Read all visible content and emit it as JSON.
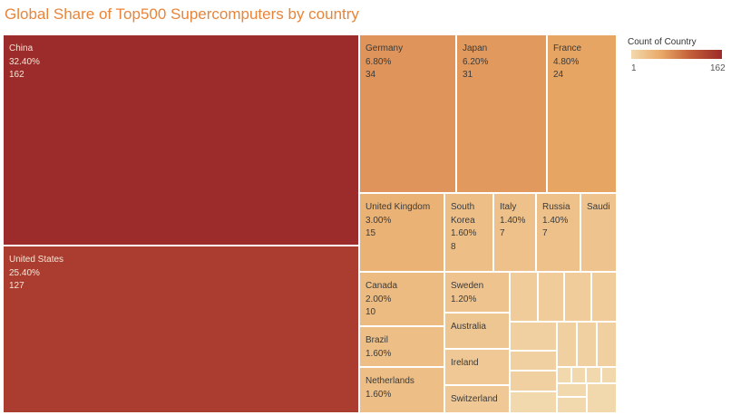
{
  "chart_data": {
    "type": "treemap",
    "title": "Global Share of Top500 Supercomputers by country",
    "legend": {
      "title": "Count of Country",
      "min": "1",
      "max": "162",
      "placement": "top-right"
    },
    "colors": {
      "low": "#f2d9ad",
      "mid": "#e9a866",
      "high": "#9c2b2b",
      "title": "#e8853a"
    },
    "items": [
      {
        "name": "China",
        "share": "32.40%",
        "count": "162",
        "count_value": 162
      },
      {
        "name": "United States",
        "share": "25.40%",
        "count": "127",
        "count_value": 127
      },
      {
        "name": "Germany",
        "share": "6.80%",
        "count": "34",
        "count_value": 34
      },
      {
        "name": "Japan",
        "share": "6.20%",
        "count": "31",
        "count_value": 31
      },
      {
        "name": "France",
        "share": "4.80%",
        "count": "24",
        "count_value": 24
      },
      {
        "name": "United Kingdom",
        "share": "3.00%",
        "count": "15",
        "count_value": 15
      },
      {
        "name": "South\nKorea",
        "share": "1.60%",
        "count": "8",
        "count_value": 8
      },
      {
        "name": "Italy",
        "share": "1.40%",
        "count": "7",
        "count_value": 7
      },
      {
        "name": "Russia",
        "share": "1.40%",
        "count": "7",
        "count_value": 7
      },
      {
        "name": "Saudi",
        "share": "",
        "count": "",
        "count_value": 6
      },
      {
        "name": "Canada",
        "share": "2.00%",
        "count": "10",
        "count_value": 10
      },
      {
        "name": "Sweden",
        "share": "1.20%",
        "count": "",
        "count_value": 6
      },
      {
        "name": "Brazil",
        "share": "1.60%",
        "count": "",
        "count_value": 8
      },
      {
        "name": "Australia",
        "share": "",
        "count": "",
        "count_value": 5
      },
      {
        "name": "Ireland",
        "share": "",
        "count": "",
        "count_value": 4
      },
      {
        "name": "Netherlands",
        "share": "1.60%",
        "count": "",
        "count_value": 8
      },
      {
        "name": "Switzerland",
        "share": "",
        "count": "",
        "count_value": 4
      }
    ],
    "unlabeled_count_values": [
      3,
      3,
      3,
      3,
      2,
      2,
      2,
      2,
      2,
      2,
      1,
      1,
      1,
      1,
      1,
      1,
      1,
      1,
      1,
      1
    ]
  }
}
